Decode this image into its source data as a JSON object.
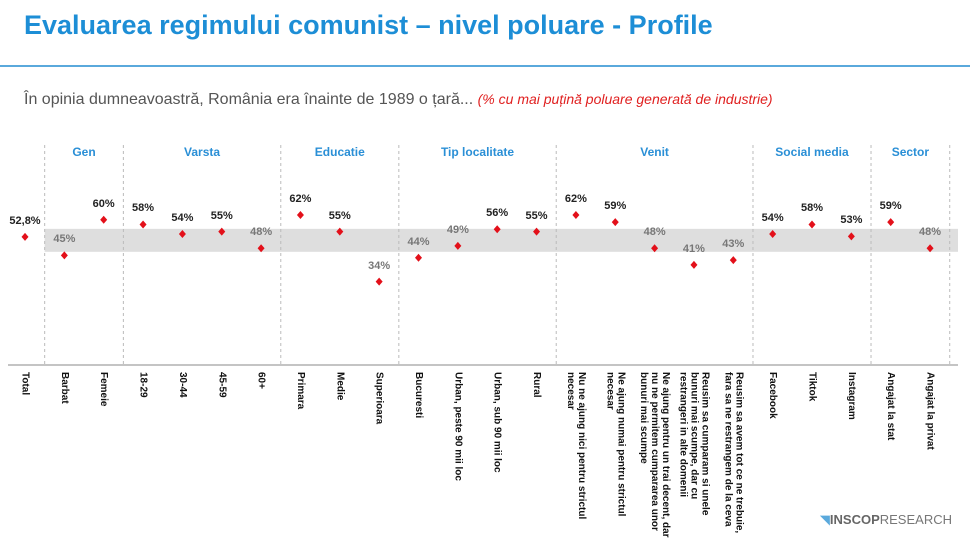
{
  "chart_data": {
    "type": "dot",
    "title": "Evaluarea regimului comunist – nivel poluare - Profile",
    "subtitle": "În opinia dumneavoastră, România era înainte de 1989 o țară...",
    "note": "(% cu mai puțină poluare generată de industrie)",
    "color": "#e3101a",
    "ylim": [
      25,
      75
    ],
    "total": {
      "category": "Total",
      "value": 52.8,
      "value_label": "52,8%"
    },
    "groups": [
      {
        "name": "Gen",
        "categories": [
          "Barbat",
          "Femeie"
        ],
        "values": [
          45,
          60
        ],
        "value_labels": [
          "45%",
          "60%"
        ]
      },
      {
        "name": "Varsta",
        "categories": [
          "18-29",
          "30-44",
          "45-59",
          "60+"
        ],
        "values": [
          58,
          54,
          55,
          48
        ],
        "value_labels": [
          "58%",
          "54%",
          "55%",
          "48%"
        ]
      },
      {
        "name": "Educatie",
        "categories": [
          "Primara",
          "Medie",
          "Superioara"
        ],
        "values": [
          62,
          55,
          34
        ],
        "value_labels": [
          "62%",
          "55%",
          "34%"
        ]
      },
      {
        "name": "Tip localitate",
        "categories": [
          "Bucuresti",
          "Urban, peste 90 mii loc",
          "Urban, sub 90 mii loc",
          "Rural"
        ],
        "values": [
          44,
          49,
          56,
          55
        ],
        "value_labels": [
          "44%",
          "49%",
          "56%",
          "55%"
        ]
      },
      {
        "name": "Venit",
        "categories": [
          "Nu ne ajung nici pentru strictul necesar",
          "Ne ajung numai pentru strictul necesar",
          "Ne ajung pentru un trai decent, dar nu ne permitem cumpararea unor bunuri mai scumpe",
          "Reusim sa cumparam si unele bunuri mai scumpe, dar cu restrangeri in alte domenii",
          "Reusim sa avem tot ce ne trebuie, fara sa ne restrangem de la ceva"
        ],
        "values": [
          62,
          59,
          48,
          41,
          43
        ],
        "value_labels": [
          "62%",
          "59%",
          "48%",
          "41%",
          "43%"
        ]
      },
      {
        "name": "Social media",
        "categories": [
          "Facebook",
          "Tiktok",
          "Instagram"
        ],
        "values": [
          54,
          58,
          53
        ],
        "value_labels": [
          "54%",
          "58%",
          "53%"
        ]
      },
      {
        "name": "Sector",
        "categories": [
          "Angajat la stat",
          "Angajat la privat"
        ],
        "values": [
          59,
          48
        ],
        "value_labels": [
          "59%",
          "48%"
        ]
      }
    ]
  },
  "logo": {
    "brand": "INSCOP",
    "suffix": "RESEARCH"
  }
}
